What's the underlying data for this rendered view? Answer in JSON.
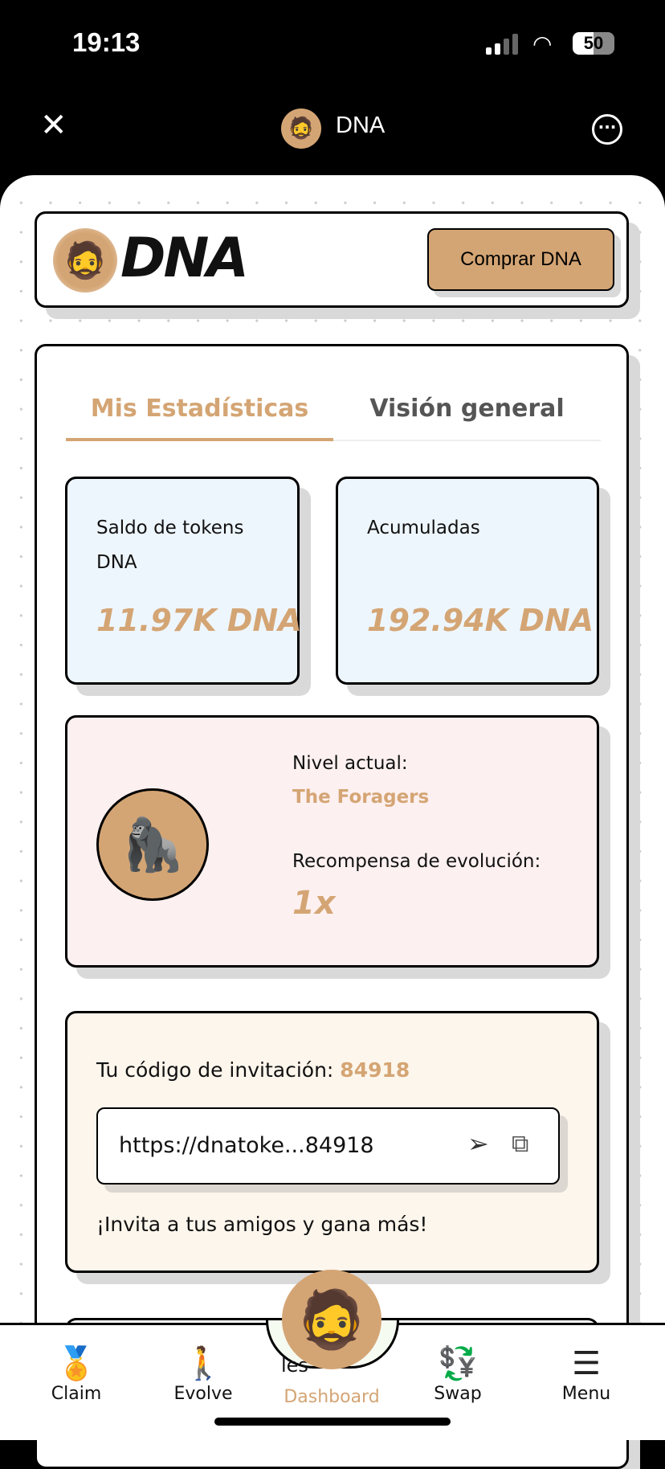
{
  "status_bar": {
    "time": "19:13",
    "battery": "50"
  },
  "top_bar": {
    "title": "DNA"
  },
  "header": {
    "logo_text": "DNA",
    "buy_button": "Comprar DNA"
  },
  "tabs": [
    {
      "label": "Mis Estadísticas",
      "active": true
    },
    {
      "label": "Visión general",
      "active": false
    }
  ],
  "stats": [
    {
      "label": "Saldo de tokens DNA",
      "value": "11.97K DNA"
    },
    {
      "label": "Acumuladas",
      "value": "192.94K DNA"
    }
  ],
  "level": {
    "label": "Nivel actual:",
    "name": "The Foragers",
    "reward_label": "Recompensa de evolución:",
    "reward_value": "1x"
  },
  "invite": {
    "label": "Tu código de invitación:",
    "code": "84918",
    "link": "https://dnatoke...84918",
    "footer": "¡Invita a tus amigos y gana más!"
  },
  "hidden_text": "les",
  "nav": [
    {
      "label": "Claim",
      "icon": "award-hand-icon"
    },
    {
      "label": "Evolve",
      "icon": "evolution-icon"
    },
    {
      "label": "Dashboard",
      "icon": "dna-avatar",
      "active": true
    },
    {
      "label": "Swap",
      "icon": "swap-coins-icon"
    },
    {
      "label": "Menu",
      "icon": "hamburger-icon"
    }
  ],
  "colors": {
    "accent": "#d4a574",
    "stat_bg": "#eef6fd",
    "level_bg": "#fdf0f0",
    "invite_bg": "#fdf6ec"
  }
}
